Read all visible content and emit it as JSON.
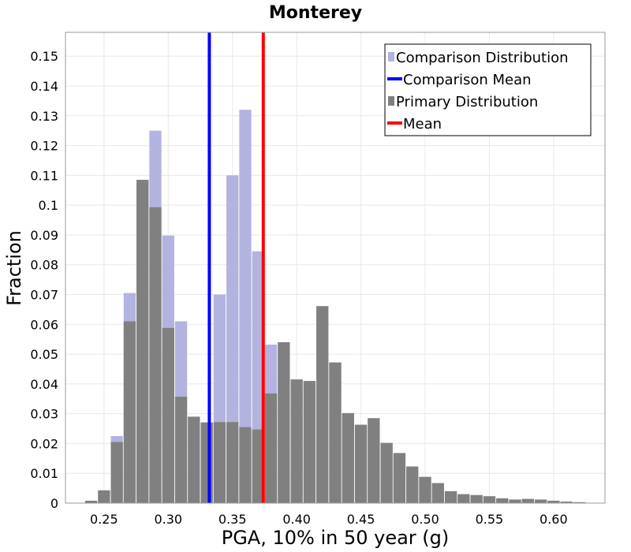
{
  "chart_data": {
    "type": "bar",
    "title": "Monterey",
    "xlabel": "PGA, 10% in 50 year (g)",
    "ylabel": "Fraction",
    "xlim": [
      0.22,
      0.64
    ],
    "ylim": [
      0,
      0.158
    ],
    "bin_width": 0.01,
    "grid": true,
    "legend_position": "top-right",
    "xticks": [
      "0.25",
      "0.30",
      "0.35",
      "0.40",
      "0.45",
      "0.50",
      "0.55",
      "0.60"
    ],
    "yticks": [
      "0",
      "0.01",
      "0.02",
      "0.03",
      "0.04",
      "0.05",
      "0.06",
      "0.07",
      "0.08",
      "0.09",
      "0.1",
      "0.11",
      "0.12",
      "0.13",
      "0.14",
      "0.15"
    ],
    "bin_centers": [
      0.23,
      0.24,
      0.25,
      0.26,
      0.27,
      0.28,
      0.29,
      0.3,
      0.31,
      0.32,
      0.33,
      0.34,
      0.35,
      0.36,
      0.37,
      0.38,
      0.39,
      0.4,
      0.41,
      0.42,
      0.43,
      0.44,
      0.45,
      0.46,
      0.47,
      0.48,
      0.49,
      0.5,
      0.51,
      0.52,
      0.53,
      0.54,
      0.55,
      0.56,
      0.57,
      0.58,
      0.59,
      0.6,
      0.61,
      0.62,
      0.63
    ],
    "series": [
      {
        "name": "Comparison Distribution",
        "color": "#b3b3e0",
        "values": [
          0,
          0,
          0,
          0.0225,
          0.0705,
          0.1085,
          0.125,
          0.0898,
          0.061,
          0.029,
          0.0267,
          0.07,
          0.11,
          0.132,
          0.0845,
          0.0532,
          0.054,
          0.0415,
          0.041,
          0.0661,
          0.0472,
          0.0302,
          0.0263,
          0.0285,
          0.0202,
          0.0168,
          0.0123,
          0.0088,
          0.0067,
          0.004,
          0.003,
          0.0027,
          0.0023,
          0.0016,
          0.0012,
          0.0014,
          0.0012,
          0.0008,
          0.0005,
          0.0003,
          0.0001
        ]
      },
      {
        "name": "Primary Distribution",
        "color": "#808080",
        "values": [
          0.0001,
          0.0008,
          0.0043,
          0.0205,
          0.061,
          0.1085,
          0.0993,
          0.0588,
          0.0357,
          0.029,
          0.0271,
          0.0272,
          0.0272,
          0.0255,
          0.0247,
          0.0368,
          0.054,
          0.0415,
          0.041,
          0.0661,
          0.0472,
          0.0302,
          0.0263,
          0.0285,
          0.0202,
          0.0168,
          0.0123,
          0.0088,
          0.0067,
          0.004,
          0.003,
          0.0027,
          0.0023,
          0.0016,
          0.0012,
          0.0014,
          0.0012,
          0.0008,
          0.0005,
          0.0003,
          0.0001
        ]
      }
    ],
    "lines": [
      {
        "name": "Comparison Mean",
        "x": 0.332,
        "color": "#0000ff"
      },
      {
        "name": "Mean",
        "x": 0.374,
        "color": "#ff0000"
      }
    ],
    "legend": [
      {
        "label": "Comparison Distribution",
        "kind": "box",
        "color": "#b3b3e0"
      },
      {
        "label": "Comparison Mean",
        "kind": "line",
        "color": "#0000ff"
      },
      {
        "label": "Primary Distribution",
        "kind": "box",
        "color": "#808080"
      },
      {
        "label": "Mean",
        "kind": "line",
        "color": "#ff0000"
      }
    ]
  }
}
